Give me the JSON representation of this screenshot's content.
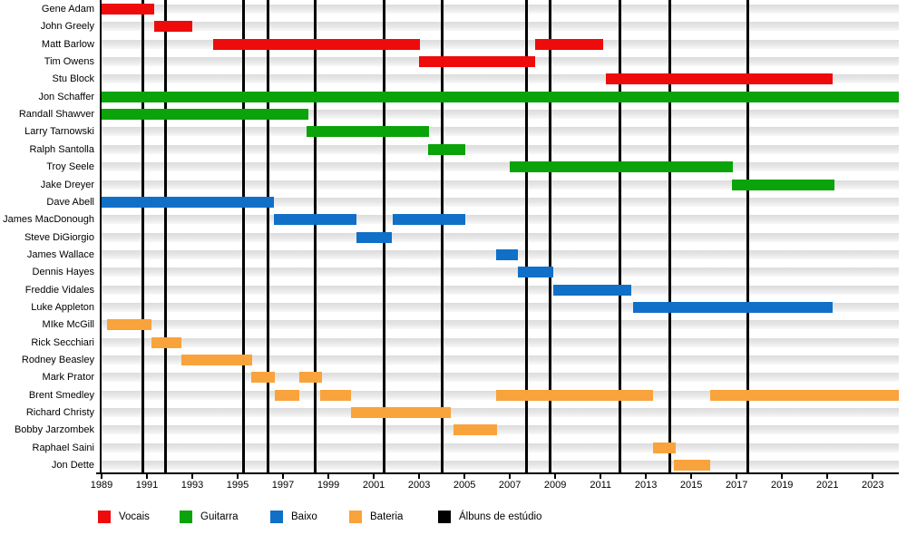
{
  "chart_data": {
    "type": "gantt",
    "description": "Timeline of band members: colored bars show tenure per member per instrument; black vertical lines mark studio album releases.",
    "x_axis": {
      "min": 1989,
      "max": 2024.15,
      "tick_years": [
        1989,
        1991,
        1993,
        1995,
        1997,
        1999,
        2001,
        2003,
        2005,
        2007,
        2009,
        2011,
        2013,
        2015,
        2017,
        2019,
        2021,
        2023
      ]
    },
    "legend": [
      {
        "label": "Vocais",
        "color": "#ee0b0b"
      },
      {
        "label": "Guitarra",
        "color": "#0aa30a"
      },
      {
        "label": "Baixo",
        "color": "#1070c8"
      },
      {
        "label": "Bateria",
        "color": "#f9a33c"
      },
      {
        "label": "Álbuns de estúdio",
        "color": "#000000"
      }
    ],
    "album_release_lines": [
      1990.8,
      1991.8,
      1995.25,
      1996.35,
      1998.4,
      2001.45,
      2004.0,
      2007.75,
      2008.78,
      2011.85,
      2014.05,
      2017.5
    ],
    "members": [
      {
        "name": "Gene Adam",
        "role": "Vocais",
        "stints": [
          [
            1989.0,
            1991.3
          ]
        ]
      },
      {
        "name": "John Greely",
        "role": "Vocais",
        "stints": [
          [
            1991.3,
            1993.0
          ]
        ]
      },
      {
        "name": "Matt Barlow",
        "role": "Vocais",
        "stints": [
          [
            1993.92,
            2003.05
          ],
          [
            2008.1,
            2011.1
          ]
        ]
      },
      {
        "name": "Tim Owens",
        "role": "Vocais",
        "stints": [
          [
            2003.0,
            2008.1
          ]
        ]
      },
      {
        "name": "Stu Block",
        "role": "Vocais",
        "stints": [
          [
            2011.25,
            2021.25
          ]
        ]
      },
      {
        "name": "Jon Schaffer",
        "role": "Guitarra",
        "stints": [
          [
            1989.0,
            2024.15
          ]
        ]
      },
      {
        "name": "Randall Shawver",
        "role": "Guitarra",
        "stints": [
          [
            1989.0,
            1998.1
          ]
        ]
      },
      {
        "name": "Larry Tarnowski",
        "role": "Guitarra",
        "stints": [
          [
            1998.05,
            2003.45
          ]
        ]
      },
      {
        "name": "Ralph Santolla",
        "role": "Guitarra",
        "stints": [
          [
            2003.4,
            2005.05
          ]
        ]
      },
      {
        "name": "Troy Seele",
        "role": "Guitarra",
        "stints": [
          [
            2007.0,
            2016.85
          ]
        ]
      },
      {
        "name": "Jake Dreyer",
        "role": "Guitarra",
        "stints": [
          [
            2016.8,
            2021.3
          ]
        ]
      },
      {
        "name": "Dave Abell",
        "role": "Baixo",
        "stints": [
          [
            1989.0,
            1996.6
          ]
        ]
      },
      {
        "name": "James MacDonough",
        "role": "Baixo",
        "stints": [
          [
            1996.6,
            2000.25
          ],
          [
            2001.85,
            2005.05
          ]
        ]
      },
      {
        "name": "Steve DiGiorgio",
        "role": "Baixo",
        "stints": [
          [
            2000.25,
            2001.8
          ]
        ]
      },
      {
        "name": "James Wallace",
        "role": "Baixo",
        "stints": [
          [
            2006.4,
            2007.35
          ]
        ]
      },
      {
        "name": "Dennis Hayes",
        "role": "Baixo",
        "stints": [
          [
            2007.35,
            2008.9
          ]
        ]
      },
      {
        "name": "Freddie Vidales",
        "role": "Baixo",
        "stints": [
          [
            2008.9,
            2012.35
          ]
        ]
      },
      {
        "name": "Luke Appleton",
        "role": "Baixo",
        "stints": [
          [
            2012.45,
            2021.25
          ]
        ]
      },
      {
        "name": "MIke McGill",
        "role": "Bateria",
        "stints": [
          [
            1989.25,
            1991.2
          ]
        ]
      },
      {
        "name": "Rick Secchiari",
        "role": "Bateria",
        "stints": [
          [
            1991.2,
            1992.5
          ]
        ]
      },
      {
        "name": "Rodney Beasley",
        "role": "Bateria",
        "stints": [
          [
            1992.5,
            1995.65
          ]
        ]
      },
      {
        "name": "Mark Prator",
        "role": "Bateria",
        "stints": [
          [
            1995.6,
            1996.65
          ],
          [
            1997.7,
            1998.7
          ]
        ]
      },
      {
        "name": "Brent Smedley",
        "role": "Bateria",
        "stints": [
          [
            1996.65,
            1997.7
          ],
          [
            1998.65,
            2000.0
          ],
          [
            2006.4,
            2013.3
          ],
          [
            2015.85,
            2024.15
          ]
        ]
      },
      {
        "name": "Richard Christy",
        "role": "Bateria",
        "stints": [
          [
            2000.0,
            2004.4
          ]
        ]
      },
      {
        "name": "Bobby Jarzombek",
        "role": "Bateria",
        "stints": [
          [
            2004.5,
            2006.45
          ]
        ]
      },
      {
        "name": "Raphael Saini",
        "role": "Bateria",
        "stints": [
          [
            2013.3,
            2014.3
          ]
        ]
      },
      {
        "name": "Jon Dette",
        "role": "Bateria",
        "stints": [
          [
            2014.25,
            2015.85
          ]
        ]
      }
    ]
  }
}
